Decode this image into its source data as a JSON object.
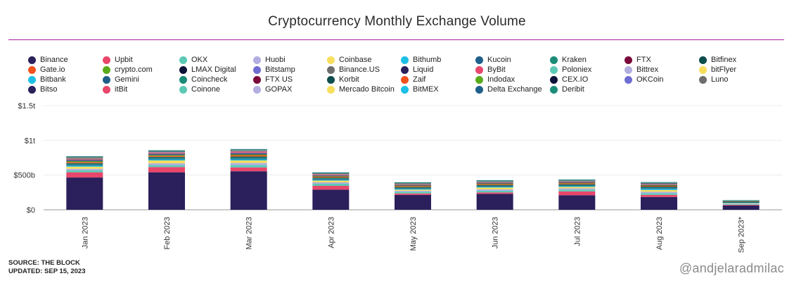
{
  "title": "Cryptocurrency Monthly Exchange Volume",
  "source": "SOURCE: THE BLOCK",
  "updated": "UPDATED: SEP 15, 2023",
  "watermark": "@andjelaradmilac",
  "legend": [
    {
      "name": "Binance",
      "color": "#2b1f5c"
    },
    {
      "name": "Upbit",
      "color": "#e8466b"
    },
    {
      "name": "OKX",
      "color": "#5cc9b5"
    },
    {
      "name": "Huobi",
      "color": "#b3aee0"
    },
    {
      "name": "Coinbase",
      "color": "#f7de5c"
    },
    {
      "name": "Bithumb",
      "color": "#1cbfe6"
    },
    {
      "name": "Kucoin",
      "color": "#1f5f8b"
    },
    {
      "name": "Kraken",
      "color": "#1a8c78"
    },
    {
      "name": "FTX",
      "color": "#7a0a3a"
    },
    {
      "name": "Bitfinex",
      "color": "#0d4d4d"
    },
    {
      "name": "Gate.io",
      "color": "#f0521e"
    },
    {
      "name": "crypto.com",
      "color": "#5aab1c"
    },
    {
      "name": "LMAX Digital",
      "color": "#0d1238"
    },
    {
      "name": "Bitstamp",
      "color": "#6f6cd4"
    },
    {
      "name": "Binance.US",
      "color": "#6e6e6e"
    },
    {
      "name": "Liquid",
      "color": "#2b1f5c"
    },
    {
      "name": "ByBit",
      "color": "#e8466b"
    },
    {
      "name": "Poloniex",
      "color": "#5cc9b5"
    },
    {
      "name": "Bittrex",
      "color": "#b3aee0"
    },
    {
      "name": "bitFlyer",
      "color": "#f7de5c"
    },
    {
      "name": "Bitbank",
      "color": "#1cbfe6"
    },
    {
      "name": "Gemini",
      "color": "#1f5f8b"
    },
    {
      "name": "Coincheck",
      "color": "#1a8c78"
    },
    {
      "name": "FTX US",
      "color": "#7a0a3a"
    },
    {
      "name": "Korbit",
      "color": "#0d4d4d"
    },
    {
      "name": "Zaif",
      "color": "#f0521e"
    },
    {
      "name": "Indodax",
      "color": "#5aab1c"
    },
    {
      "name": "CEX.IO",
      "color": "#0d1238"
    },
    {
      "name": "OKCoin",
      "color": "#6f6cd4"
    },
    {
      "name": "Luno",
      "color": "#6e6e6e"
    },
    {
      "name": "Bitso",
      "color": "#2b1f5c"
    },
    {
      "name": "itBit",
      "color": "#e8466b"
    },
    {
      "name": "Coinone",
      "color": "#5cc9b5"
    },
    {
      "name": "GOPAX",
      "color": "#b3aee0"
    },
    {
      "name": "Mercado Bitcoin",
      "color": "#f7de5c"
    },
    {
      "name": "BitMEX",
      "color": "#1cbfe6"
    },
    {
      "name": "Delta Exchange",
      "color": "#1f5f8b"
    },
    {
      "name": "Deribit",
      "color": "#1a8c78"
    }
  ],
  "chart_data": {
    "type": "bar",
    "stacked": true,
    "title": "Cryptocurrency Monthly Exchange Volume",
    "categories": [
      "Jan 2023",
      "Feb 2023",
      "Mar 2023",
      "Apr 2023",
      "May 2023",
      "Jun 2023",
      "Jul 2023",
      "Aug 2023",
      "Sep 2023*"
    ],
    "y_ticks": [
      "$0",
      "$500b",
      "$1t",
      "$1.5t"
    ],
    "ylim": [
      0,
      1500
    ],
    "y_unit": "billions USD",
    "grid": true,
    "legend_position": "top",
    "series": [
      {
        "name": "Binance",
        "values": [
          465,
          540,
          555,
          290,
          215,
          230,
          210,
          185,
          62
        ]
      },
      {
        "name": "Upbit",
        "values": [
          75,
          75,
          55,
          55,
          20,
          20,
          55,
          30,
          10
        ]
      },
      {
        "name": "OKX",
        "values": [
          30,
          30,
          35,
          30,
          25,
          25,
          25,
          25,
          10
        ]
      },
      {
        "name": "Huobi",
        "values": [
          20,
          25,
          30,
          20,
          15,
          20,
          20,
          20,
          8
        ]
      },
      {
        "name": "Coinbase",
        "values": [
          30,
          40,
          35,
          25,
          15,
          25,
          20,
          25,
          8
        ]
      },
      {
        "name": "Bithumb",
        "values": [
          15,
          15,
          15,
          10,
          10,
          10,
          10,
          15,
          4
        ]
      },
      {
        "name": "Kucoin",
        "values": [
          12,
          12,
          12,
          12,
          10,
          10,
          10,
          12,
          5
        ]
      },
      {
        "name": "Kraken",
        "values": [
          15,
          15,
          18,
          12,
          10,
          10,
          10,
          12,
          5
        ]
      },
      {
        "name": "FTX",
        "values": [
          0,
          0,
          0,
          0,
          0,
          0,
          0,
          0,
          0
        ]
      },
      {
        "name": "Bitfinex",
        "values": [
          10,
          10,
          12,
          10,
          8,
          8,
          8,
          10,
          4
        ]
      },
      {
        "name": "Gate.io",
        "values": [
          15,
          15,
          18,
          12,
          12,
          12,
          12,
          10,
          4
        ]
      },
      {
        "name": "crypto.com",
        "values": [
          12,
          12,
          12,
          8,
          8,
          8,
          8,
          8,
          3
        ]
      },
      {
        "name": "LMAX Digital",
        "values": [
          8,
          8,
          10,
          6,
          5,
          5,
          5,
          5,
          2
        ]
      },
      {
        "name": "Bitstamp",
        "values": [
          8,
          8,
          10,
          6,
          5,
          5,
          5,
          5,
          2
        ]
      },
      {
        "name": "Binance.US",
        "values": [
          10,
          8,
          6,
          3,
          2,
          1,
          1,
          1,
          1
        ]
      },
      {
        "name": "Liquid",
        "values": [
          0,
          0,
          0,
          0,
          0,
          0,
          0,
          0,
          0
        ]
      },
      {
        "name": "ByBit",
        "values": [
          15,
          15,
          20,
          15,
          12,
          12,
          12,
          12,
          5
        ]
      },
      {
        "name": "Poloniex",
        "values": [
          3,
          3,
          3,
          2,
          2,
          2,
          2,
          2,
          1
        ]
      },
      {
        "name": "Bittrex",
        "values": [
          2,
          2,
          2,
          1,
          1,
          1,
          1,
          1,
          0
        ]
      },
      {
        "name": "bitFlyer",
        "values": [
          3,
          3,
          3,
          2,
          2,
          2,
          2,
          2,
          1
        ]
      },
      {
        "name": "Bitbank",
        "values": [
          2,
          2,
          2,
          2,
          2,
          2,
          2,
          2,
          1
        ]
      },
      {
        "name": "Gemini",
        "values": [
          2,
          2,
          2,
          1,
          1,
          1,
          1,
          1,
          0
        ]
      },
      {
        "name": "Coincheck",
        "values": [
          1,
          1,
          1,
          1,
          1,
          1,
          1,
          1,
          0
        ]
      },
      {
        "name": "FTX US",
        "values": [
          0,
          0,
          0,
          0,
          0,
          0,
          0,
          0,
          0
        ]
      },
      {
        "name": "Korbit",
        "values": [
          1,
          1,
          1,
          1,
          1,
          1,
          1,
          1,
          0
        ]
      },
      {
        "name": "Zaif",
        "values": [
          0,
          0,
          0,
          0,
          0,
          0,
          0,
          0,
          0
        ]
      },
      {
        "name": "Indodax",
        "values": [
          1,
          1,
          1,
          1,
          1,
          1,
          1,
          1,
          0
        ]
      },
      {
        "name": "CEX.IO",
        "values": [
          1,
          1,
          1,
          1,
          1,
          1,
          1,
          1,
          0
        ]
      },
      {
        "name": "OKCoin",
        "values": [
          1,
          1,
          1,
          1,
          1,
          1,
          1,
          1,
          0
        ]
      },
      {
        "name": "Luno",
        "values": [
          1,
          1,
          1,
          1,
          1,
          1,
          1,
          1,
          0
        ]
      },
      {
        "name": "Bitso",
        "values": [
          1,
          1,
          1,
          1,
          1,
          1,
          1,
          1,
          0
        ]
      },
      {
        "name": "itBit",
        "values": [
          1,
          1,
          1,
          1,
          1,
          1,
          1,
          1,
          0
        ]
      },
      {
        "name": "Coinone",
        "values": [
          1,
          1,
          1,
          1,
          1,
          1,
          1,
          1,
          0
        ]
      },
      {
        "name": "GOPAX",
        "values": [
          0,
          0,
          0,
          0,
          0,
          0,
          0,
          0,
          0
        ]
      },
      {
        "name": "Mercado Bitcoin",
        "values": [
          1,
          1,
          1,
          1,
          1,
          1,
          1,
          1,
          0
        ]
      },
      {
        "name": "BitMEX",
        "values": [
          2,
          2,
          2,
          2,
          2,
          2,
          2,
          2,
          1
        ]
      },
      {
        "name": "Delta Exchange",
        "values": [
          1,
          1,
          1,
          1,
          1,
          1,
          1,
          1,
          0
        ]
      },
      {
        "name": "Deribit",
        "values": [
          5,
          5,
          6,
          4,
          3,
          3,
          3,
          3,
          1
        ]
      }
    ]
  }
}
